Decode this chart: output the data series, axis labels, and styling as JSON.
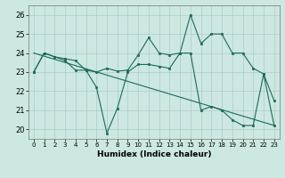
{
  "xlabel": "Humidex (Indice chaleur)",
  "background_color": "#cce8e0",
  "grid_color": "#aacccc",
  "line_color": "#1a6b5a",
  "xlim": [
    -0.5,
    23.5
  ],
  "ylim": [
    19.5,
    26.5
  ],
  "yticks": [
    20,
    21,
    22,
    23,
    24,
    25,
    26
  ],
  "xticks": [
    0,
    1,
    2,
    3,
    4,
    5,
    6,
    7,
    8,
    9,
    10,
    11,
    12,
    13,
    14,
    15,
    16,
    17,
    18,
    19,
    20,
    21,
    22,
    23
  ],
  "series1_x": [
    0,
    1,
    2,
    3,
    4,
    5,
    6,
    7,
    8,
    9,
    10,
    11,
    12,
    13,
    14,
    15,
    16,
    17,
    18,
    19,
    20,
    21,
    22,
    23
  ],
  "series1_y": [
    23.0,
    24.0,
    23.8,
    23.7,
    23.6,
    23.1,
    23.0,
    23.2,
    23.05,
    23.1,
    23.9,
    24.8,
    24.0,
    23.9,
    24.0,
    26.0,
    24.5,
    25.0,
    25.0,
    24.0,
    24.0,
    23.2,
    22.9,
    21.5
  ],
  "series2_x": [
    0,
    1,
    2,
    3,
    4,
    5,
    6,
    7,
    8,
    9,
    10,
    11,
    12,
    13,
    14,
    15,
    16,
    17,
    18,
    19,
    20,
    21,
    22,
    23
  ],
  "series2_y": [
    23.0,
    24.0,
    23.8,
    23.6,
    23.1,
    23.1,
    22.2,
    19.8,
    21.1,
    23.0,
    23.4,
    23.4,
    23.3,
    23.2,
    24.0,
    24.0,
    21.0,
    21.2,
    21.0,
    20.5,
    20.2,
    20.2,
    22.9,
    20.2
  ],
  "series3_x": [
    0,
    23
  ],
  "series3_y": [
    24.0,
    20.2
  ]
}
